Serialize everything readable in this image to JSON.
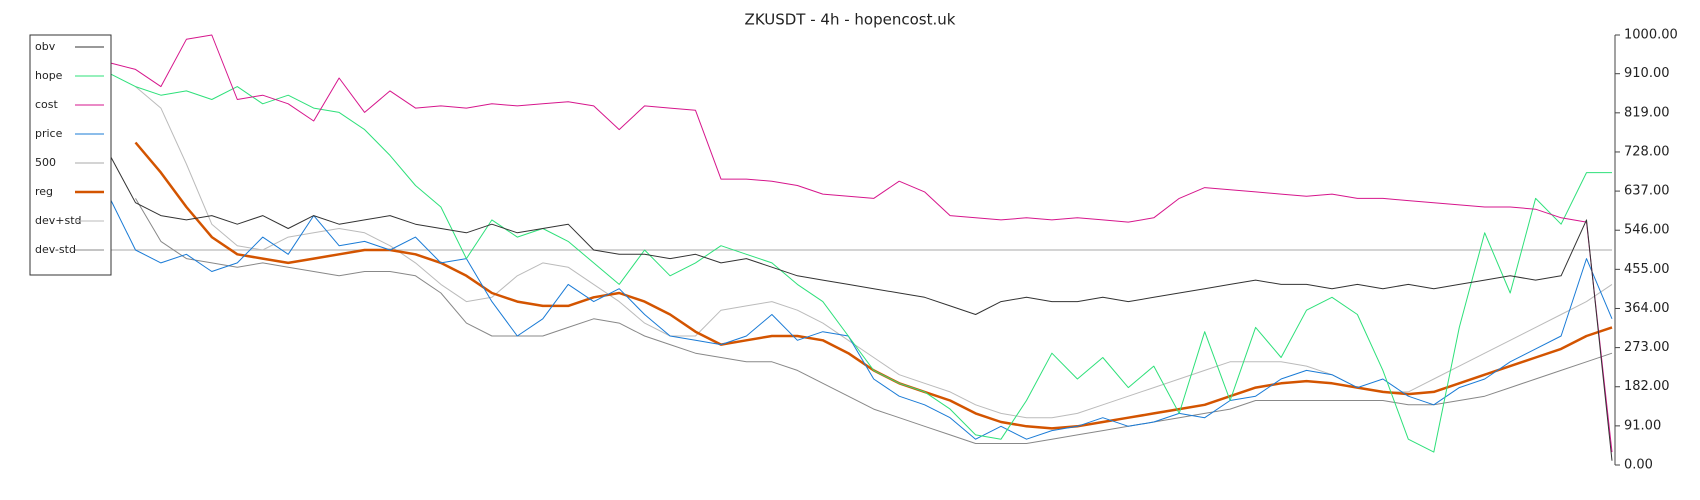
{
  "chart_data": {
    "type": "line",
    "title": "ZKUSDT - 4h - hopencost.uk",
    "ylim": [
      0,
      1000
    ],
    "yticks": [
      {
        "value": 0,
        "label": "0.00"
      },
      {
        "value": 91,
        "label": "91.00"
      },
      {
        "value": 182,
        "label": "182.00"
      },
      {
        "value": 273,
        "label": "273.00"
      },
      {
        "value": 364,
        "label": "364.00"
      },
      {
        "value": 455,
        "label": "455.00"
      },
      {
        "value": 546,
        "label": "546.00"
      },
      {
        "value": 637,
        "label": "637.00"
      },
      {
        "value": 728,
        "label": "728.00"
      },
      {
        "value": 819,
        "label": "819.00"
      },
      {
        "value": 910,
        "label": "910.00"
      },
      {
        "value": 1000,
        "label": "1000.00"
      }
    ],
    "legend": "upper left",
    "series": [
      {
        "name": "obv",
        "color": "#333333",
        "width": 1,
        "values": [
          720,
          610,
          580,
          570,
          580,
          560,
          580,
          550,
          580,
          560,
          570,
          580,
          560,
          550,
          540,
          560,
          540,
          550,
          560,
          500,
          490,
          490,
          480,
          490,
          470,
          480,
          460,
          440,
          430,
          420,
          410,
          400,
          390,
          370,
          350,
          380,
          390,
          380,
          380,
          390,
          380,
          390,
          400,
          410,
          420,
          430,
          420,
          420,
          410,
          420,
          410,
          420,
          410,
          420,
          430,
          440,
          430,
          440,
          570,
          10
        ]
      },
      {
        "name": "hope",
        "color": "#2ee07a",
        "width": 1,
        "values": [
          910,
          880,
          860,
          870,
          850,
          880,
          840,
          860,
          830,
          820,
          780,
          720,
          650,
          600,
          480,
          570,
          530,
          550,
          520,
          470,
          420,
          500,
          440,
          470,
          510,
          490,
          470,
          420,
          380,
          300,
          220,
          190,
          170,
          130,
          70,
          60,
          150,
          260,
          200,
          250,
          180,
          230,
          120,
          310,
          150,
          320,
          250,
          360,
          390,
          350,
          220,
          60,
          30,
          320,
          540,
          400,
          620,
          560,
          680,
          680
        ]
      },
      {
        "name": "cost",
        "color": "#d6168c",
        "width": 1,
        "values": [
          935,
          920,
          880,
          990,
          1000,
          850,
          860,
          840,
          800,
          900,
          820,
          870,
          830,
          835,
          830,
          840,
          835,
          840,
          845,
          835,
          780,
          835,
          830,
          825,
          665,
          665,
          660,
          650,
          630,
          625,
          620,
          660,
          635,
          580,
          575,
          570,
          575,
          570,
          575,
          570,
          565,
          575,
          620,
          645,
          640,
          635,
          630,
          625,
          630,
          620,
          620,
          615,
          610,
          605,
          600,
          600,
          595,
          575,
          565,
          30
        ]
      },
      {
        "name": "price",
        "color": "#1a7bd6",
        "width": 1,
        "values": [
          620,
          500,
          470,
          490,
          450,
          470,
          530,
          490,
          580,
          510,
          520,
          500,
          530,
          470,
          480,
          380,
          300,
          340,
          420,
          380,
          410,
          350,
          300,
          290,
          280,
          300,
          350,
          290,
          310,
          300,
          200,
          160,
          140,
          110,
          60,
          90,
          60,
          80,
          90,
          110,
          90,
          100,
          120,
          110,
          150,
          160,
          200,
          220,
          210,
          180,
          200,
          160,
          140,
          180,
          200,
          240,
          270,
          300,
          480,
          340
        ]
      },
      {
        "name": "500",
        "color": "#bbbbbb",
        "width": 1.2,
        "values": [
          500,
          500,
          500,
          500,
          500,
          500,
          500,
          500,
          500,
          500,
          500,
          500,
          500,
          500,
          500,
          500,
          500,
          500,
          500,
          500,
          500,
          500,
          500,
          500,
          500,
          500,
          500,
          500,
          500,
          500,
          500,
          500,
          500,
          500,
          500,
          500,
          500,
          500,
          500,
          500,
          500,
          500,
          500,
          500,
          500,
          500,
          500,
          500,
          500,
          500,
          500,
          500,
          500,
          500,
          500,
          500,
          500,
          500,
          500,
          500
        ]
      },
      {
        "name": "reg",
        "color": "#d35400",
        "width": 2.5,
        "values": [
          null,
          750,
          680,
          600,
          530,
          490,
          480,
          470,
          480,
          490,
          500,
          500,
          490,
          470,
          440,
          400,
          380,
          370,
          370,
          390,
          400,
          380,
          350,
          310,
          280,
          290,
          300,
          300,
          290,
          260,
          220,
          190,
          170,
          150,
          120,
          100,
          90,
          85,
          90,
          100,
          110,
          120,
          130,
          140,
          160,
          180,
          190,
          195,
          190,
          180,
          170,
          165,
          170,
          190,
          210,
          230,
          250,
          270,
          300,
          320
        ]
      },
      {
        "name": "dev+std",
        "color": "#bbbbbb",
        "width": 1,
        "values": [
          null,
          880,
          830,
          700,
          560,
          510,
          500,
          530,
          540,
          550,
          540,
          510,
          470,
          420,
          380,
          390,
          440,
          470,
          460,
          420,
          380,
          330,
          300,
          300,
          360,
          370,
          380,
          360,
          330,
          290,
          250,
          210,
          190,
          170,
          140,
          120,
          110,
          110,
          120,
          140,
          160,
          180,
          200,
          220,
          240,
          240,
          240,
          230,
          210,
          180,
          170,
          170,
          200,
          230,
          260,
          290,
          320,
          350,
          380,
          420
        ]
      },
      {
        "name": "dev-std",
        "color": "#888888",
        "width": 1,
        "values": [
          null,
          620,
          520,
          480,
          470,
          460,
          470,
          460,
          450,
          440,
          450,
          450,
          440,
          400,
          330,
          300,
          300,
          300,
          320,
          340,
          330,
          300,
          280,
          260,
          250,
          240,
          240,
          220,
          190,
          160,
          130,
          110,
          90,
          70,
          50,
          50,
          50,
          60,
          70,
          80,
          90,
          100,
          110,
          120,
          130,
          150,
          150,
          150,
          150,
          150,
          150,
          140,
          140,
          150,
          160,
          180,
          200,
          220,
          240,
          260
        ]
      }
    ]
  }
}
